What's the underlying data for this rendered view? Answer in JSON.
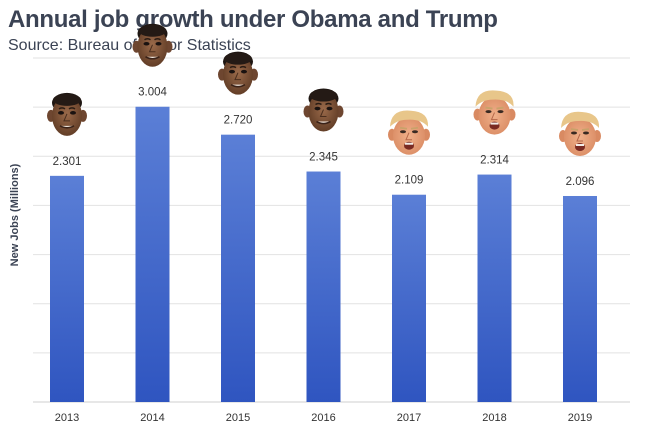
{
  "header": {
    "title": "Annual job growth under Obama and Trump",
    "subtitle": "Source: Bureau of Labor Statistics"
  },
  "chart_data": {
    "type": "bar",
    "title": "Annual job growth under Obama and Trump",
    "subtitle": "Source: Bureau of Labor Statistics",
    "xlabel": "",
    "ylabel": "New Jobs (Millions)",
    "categories": [
      "2013",
      "2014",
      "2015",
      "2016",
      "2017",
      "2018",
      "2019"
    ],
    "values": [
      2.301,
      3.004,
      2.72,
      2.345,
      2.109,
      2.314,
      2.096
    ],
    "value_labels": [
      "2.301",
      "3.004",
      "2.720",
      "2.345",
      "2.109",
      "2.314",
      "2.096"
    ],
    "presidents": [
      "Obama",
      "Obama",
      "Obama",
      "Obama",
      "Trump",
      "Trump",
      "Trump"
    ],
    "ylim": [
      0,
      3.5
    ],
    "grid": true,
    "legend": "none",
    "bar_color_top": "#5b7fd6",
    "bar_color_bottom": "#2f55c0",
    "icons": [
      "obama-face-icon",
      "trump-face-icon"
    ]
  }
}
